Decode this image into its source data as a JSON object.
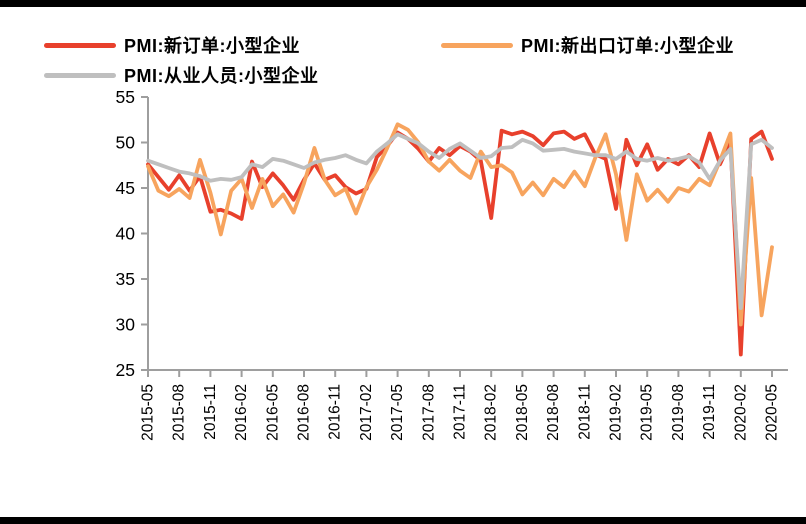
{
  "frame": {
    "background": "#ffffff",
    "border_color": "#000000"
  },
  "legend": {
    "items": [
      {
        "label": "PMI:新订单:小型企业",
        "color": "#e8402c"
      },
      {
        "label": "PMI:新出口订单:小型企业",
        "color": "#f7a45e"
      },
      {
        "label": "PMI:从业人员:小型企业",
        "color": "#bfbfbf"
      }
    ]
  },
  "chart_data": {
    "type": "line",
    "title": "",
    "xlabel": "",
    "ylabel": "",
    "ylim": [
      25,
      55
    ],
    "y_ticks": [
      25,
      30,
      35,
      40,
      45,
      50,
      55
    ],
    "x_tick_every": 3,
    "grid": false,
    "legend_position": "top",
    "axis_color": "#9e9e9e",
    "tick_label_color": "#000000",
    "line_width": 3.8,
    "x": [
      "2015-05",
      "2015-06",
      "2015-07",
      "2015-08",
      "2015-09",
      "2015-10",
      "2015-11",
      "2015-12",
      "2016-01",
      "2016-02",
      "2016-03",
      "2016-04",
      "2016-05",
      "2016-06",
      "2016-07",
      "2016-08",
      "2016-09",
      "2016-10",
      "2016-11",
      "2016-12",
      "2017-01",
      "2017-02",
      "2017-03",
      "2017-04",
      "2017-05",
      "2017-06",
      "2017-07",
      "2017-08",
      "2017-09",
      "2017-10",
      "2017-11",
      "2017-12",
      "2018-01",
      "2018-02",
      "2018-03",
      "2018-04",
      "2018-05",
      "2018-06",
      "2018-07",
      "2018-08",
      "2018-09",
      "2018-10",
      "2018-11",
      "2018-12",
      "2019-01",
      "2019-02",
      "2019-03",
      "2019-04",
      "2019-05",
      "2019-06",
      "2019-07",
      "2019-08",
      "2019-09",
      "2019-10",
      "2019-11",
      "2019-12",
      "2020-01",
      "2020-02",
      "2020-03",
      "2020-04",
      "2020-05"
    ],
    "series": [
      {
        "name": "PMI:新订单:小型企业",
        "color": "#e8402c",
        "values": [
          47.6,
          46.2,
          44.8,
          46.4,
          44.7,
          46.3,
          42.4,
          42.6,
          42.2,
          41.6,
          47.9,
          45.1,
          46.6,
          45.3,
          43.7,
          45.9,
          47.7,
          45.9,
          46.4,
          45.1,
          44.4,
          44.9,
          48.4,
          49.6,
          51.1,
          50.4,
          49.3,
          47.9,
          49.4,
          48.6,
          49.6,
          49.0,
          48.0,
          41.7,
          51.3,
          50.9,
          51.2,
          50.7,
          49.7,
          51.0,
          51.2,
          50.4,
          50.9,
          48.7,
          48.2,
          42.7,
          50.3,
          47.5,
          49.8,
          47.0,
          48.2,
          47.6,
          48.6,
          47.3,
          51.0,
          47.6,
          50.1,
          26.7,
          50.4,
          51.2,
          48.2
        ]
      },
      {
        "name": "PMI:新出口订单:小型企业",
        "color": "#f7a45e",
        "values": [
          47.4,
          44.7,
          44.1,
          44.9,
          43.9,
          48.1,
          44.5,
          39.9,
          44.7,
          46.0,
          42.8,
          46.0,
          43.0,
          44.3,
          42.3,
          45.5,
          49.4,
          45.9,
          44.2,
          44.9,
          42.2,
          45.1,
          47.0,
          49.4,
          52.0,
          51.4,
          50.0,
          47.9,
          46.9,
          48.1,
          46.9,
          46.1,
          49.0,
          47.3,
          47.5,
          46.7,
          44.3,
          45.6,
          44.2,
          46.0,
          45.1,
          46.8,
          45.2,
          48.3,
          50.9,
          46.5,
          39.3,
          46.5,
          43.6,
          44.8,
          43.5,
          45.0,
          44.6,
          46.0,
          45.3,
          48.0,
          51.0,
          30.0,
          46.1,
          31.0,
          38.5
        ]
      },
      {
        "name": "PMI:从业人员:小型企业",
        "color": "#bfbfbf",
        "values": [
          48.0,
          47.6,
          47.2,
          46.8,
          46.6,
          46.3,
          45.8,
          46.0,
          45.9,
          46.2,
          47.6,
          47.3,
          48.2,
          48.0,
          47.6,
          47.2,
          47.8,
          48.1,
          48.3,
          48.6,
          48.1,
          47.7,
          49.0,
          49.9,
          50.9,
          50.4,
          49.9,
          49.0,
          48.3,
          49.3,
          49.9,
          49.1,
          48.3,
          48.5,
          49.4,
          49.5,
          50.3,
          49.9,
          49.1,
          49.2,
          49.3,
          49.0,
          48.8,
          48.6,
          48.6,
          48.2,
          49.0,
          48.2,
          48.0,
          48.3,
          48.0,
          48.2,
          48.5,
          47.8,
          46.0,
          48.0,
          49.3,
          31.8,
          49.8,
          50.3,
          49.4
        ]
      }
    ]
  }
}
